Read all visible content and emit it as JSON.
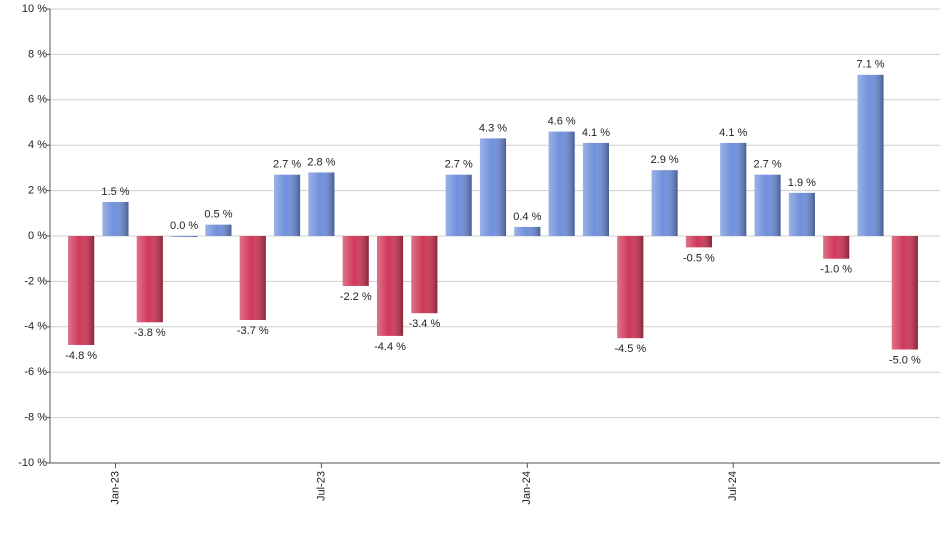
{
  "chart_data": {
    "type": "bar",
    "categories": [
      null,
      "Jan-23",
      null,
      null,
      null,
      null,
      null,
      "Jul-23",
      null,
      null,
      null,
      null,
      null,
      "Jan-24",
      null,
      null,
      null,
      null,
      null,
      "Jul-24",
      null,
      null,
      null,
      null,
      null
    ],
    "values": [
      -4.8,
      1.5,
      -3.8,
      0.0,
      0.5,
      -3.7,
      2.7,
      2.8,
      -2.2,
      -4.4,
      -3.4,
      2.7,
      4.3,
      0.4,
      4.6,
      4.1,
      -4.5,
      2.9,
      -0.5,
      4.1,
      2.7,
      1.9,
      -1.0,
      7.1,
      -5.0
    ],
    "value_labels": [
      "-4.8 %",
      "1.5 %",
      "-3.8 %",
      "0.0 %",
      "0.5 %",
      "-3.7 %",
      "2.7 %",
      "2.8 %",
      "-2.2 %",
      "-4.4 %",
      "-3.4 %",
      "2.7 %",
      "4.3 %",
      "0.4 %",
      "4.6 %",
      "4.1 %",
      "-4.5 %",
      "2.9 %",
      "-0.5 %",
      "4.1 %",
      "2.7 %",
      "1.9 %",
      "-1.0 %",
      "7.1 %",
      "-5.0 %"
    ],
    "colors": {
      "positive": "#7090dc",
      "negative": "#d03858"
    },
    "ylim": [
      -10,
      10
    ],
    "yticks": [
      {
        "value": -10,
        "label": "-10 %"
      },
      {
        "value": -8,
        "label": "-8 %"
      },
      {
        "value": -6,
        "label": "-6 %"
      },
      {
        "value": -4,
        "label": "-4 %"
      },
      {
        "value": -2,
        "label": "-2 %"
      },
      {
        "value": 0,
        "label": "0 %"
      },
      {
        "value": 2,
        "label": "2 %"
      },
      {
        "value": 4,
        "label": "4 %"
      },
      {
        "value": 6,
        "label": "6 %"
      },
      {
        "value": 8,
        "label": "8 %"
      },
      {
        "value": 10,
        "label": "10 %"
      }
    ],
    "grid": true
  }
}
